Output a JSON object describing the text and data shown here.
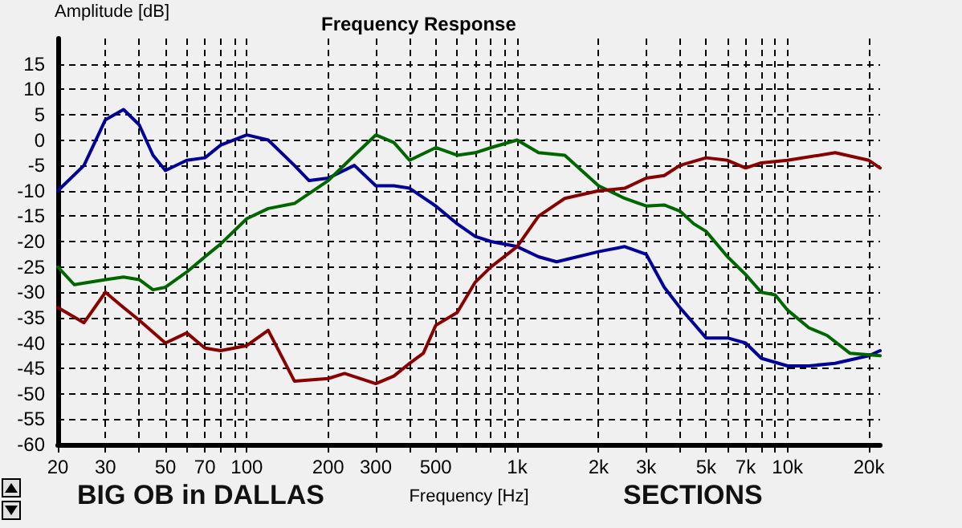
{
  "chart_data": {
    "type": "line",
    "title": "Frequency Response",
    "xlabel": "Frequency [Hz]",
    "ylabel": "Amplitude [dB]",
    "annotations": [
      "BIG OB in DALLAS",
      "SECTIONS"
    ],
    "log": "x",
    "grid": true,
    "marker": "none",
    "line_style": "solid",
    "xlim": [
      20,
      22000
    ],
    "ylim": [
      -60,
      20
    ],
    "xticks": [
      20,
      30,
      {
        "value": 40,
        "label": null
      },
      50,
      {
        "value": 60,
        "label": null
      },
      70,
      {
        "value": 80,
        "label": null
      },
      {
        "value": 90,
        "label": null
      },
      100,
      200,
      300,
      {
        "value": 400,
        "label": null
      },
      500,
      {
        "value": 600,
        "label": null
      },
      {
        "value": 700,
        "label": null
      },
      {
        "value": 800,
        "label": null
      },
      {
        "value": 900,
        "label": null
      },
      {
        "value": 1000,
        "label": "1k"
      },
      {
        "value": 2000,
        "label": "2k"
      },
      {
        "value": 3000,
        "label": "3k"
      },
      {
        "value": 4000,
        "label": null
      },
      {
        "value": 5000,
        "label": "5k"
      },
      {
        "value": 6000,
        "label": null
      },
      {
        "value": 7000,
        "label": "7k"
      },
      {
        "value": 8000,
        "label": null
      },
      {
        "value": 9000,
        "label": null
      },
      {
        "value": 10000,
        "label": "10k"
      },
      {
        "value": 20000,
        "label": "20k"
      }
    ],
    "yticks": [
      -60,
      -55,
      -50,
      -45,
      -40,
      -35,
      -30,
      -25,
      -20,
      -15,
      -10,
      -5,
      0,
      5,
      10,
      15
    ],
    "series": [
      {
        "color": "#000099",
        "x": [
          20,
          25,
          30,
          35,
          40,
          45,
          50,
          60,
          70,
          80,
          100,
          120,
          150,
          170,
          200,
          250,
          300,
          350,
          400,
          500,
          600,
          700,
          800,
          1000,
          1200,
          1400,
          2000,
          2500,
          3000,
          3500,
          4000,
          5000,
          6000,
          7000,
          8000,
          10000,
          12000,
          15000,
          20000,
          22000
        ],
        "values": [
          -10,
          -5,
          4,
          6,
          3,
          -3,
          -6,
          -4,
          -3.5,
          -1,
          1,
          0,
          -5,
          -8,
          -7.5,
          -5,
          -9,
          -9,
          -9.5,
          -13,
          -16.5,
          -19,
          -20,
          -21,
          -23,
          -24,
          -22,
          -21,
          -22.5,
          -29,
          -33,
          -39,
          -39,
          -40,
          -43,
          -44.5,
          -44.5,
          -44,
          -42.5,
          -41.5
        ]
      },
      {
        "color": "#006600",
        "x": [
          20,
          23,
          30,
          35,
          40,
          45,
          50,
          60,
          70,
          80,
          100,
          120,
          150,
          200,
          250,
          300,
          350,
          400,
          500,
          600,
          700,
          800,
          1000,
          1200,
          1500,
          2000,
          2500,
          3000,
          3500,
          4000,
          4500,
          5000,
          6000,
          7000,
          8000,
          9000,
          10000,
          12000,
          14000,
          17000,
          22000
        ],
        "values": [
          -25,
          -28.5,
          -27.5,
          -27,
          -27.5,
          -29.5,
          -29,
          -26,
          -23,
          -20.5,
          -15.5,
          -13.5,
          -12.5,
          -8,
          -3,
          1,
          -0.5,
          -4,
          -1.5,
          -3,
          -2.5,
          -1.5,
          0,
          -2.5,
          -3,
          -9,
          -11.5,
          -13,
          -12.8,
          -14,
          -16.5,
          -18,
          -23,
          -26.5,
          -30,
          -30.5,
          -33.5,
          -37,
          -38.5,
          -42,
          -42.5
        ]
      },
      {
        "color": "#880000",
        "x": [
          20,
          25,
          30,
          35,
          40,
          50,
          60,
          70,
          80,
          100,
          120,
          150,
          200,
          230,
          300,
          350,
          400,
          450,
          500,
          600,
          700,
          800,
          1000,
          1200,
          1500,
          2000,
          2500,
          3000,
          3500,
          4000,
          5000,
          6000,
          7000,
          8000,
          10000,
          15000,
          20000,
          22000
        ],
        "values": [
          -33,
          -36,
          -30,
          -33,
          -35.5,
          -40,
          -38,
          -41,
          -41.5,
          -40.5,
          -37.5,
          -47.5,
          -47,
          -46,
          -48,
          -46.5,
          -44,
          -42,
          -36.5,
          -34,
          -28,
          -25,
          -21,
          -15,
          -11.5,
          -10,
          -9.5,
          -7.5,
          -7,
          -5,
          -3.5,
          -4,
          -5.5,
          -4.5,
          -4,
          -2.5,
          -4,
          -5.5
        ]
      }
    ]
  }
}
